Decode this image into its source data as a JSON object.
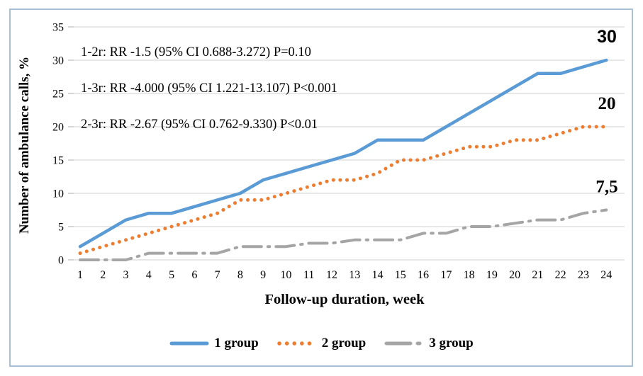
{
  "window": {
    "background": "#ffffff",
    "border_color": "#a9c0d6"
  },
  "chart_data": {
    "type": "line",
    "title": "",
    "xlabel": "Follow-up duration, week",
    "ylabel": "Number of ambulance calls, %",
    "x_ticks": [
      1,
      2,
      3,
      4,
      5,
      6,
      7,
      8,
      9,
      10,
      11,
      12,
      13,
      14,
      15,
      16,
      17,
      18,
      19,
      20,
      21,
      22,
      23,
      24
    ],
    "y_ticks": [
      0,
      5,
      10,
      15,
      20,
      25,
      30,
      35
    ],
    "ylim": [
      0,
      35
    ],
    "grid": true,
    "legend_position": "bottom",
    "gridline_color": "#d9d9d9",
    "tick_color": "#bfbfbf",
    "annotations": [
      "1-2r: RR -1.5 (95% CI 0.688-3.272) P=0.10",
      "1-3r: RR -4.000 (95% CI 1.221-13.107) P<0.001",
      "2-3r: RR -2.67 (95% CI 0.762-9.330) P<0.01"
    ],
    "series": [
      {
        "name": "1 group",
        "color": "#5B9BD5",
        "line_style": "solid",
        "end_label": "30",
        "values": [
          2,
          4,
          6,
          7,
          7,
          8,
          9,
          10,
          12,
          13,
          14,
          15,
          16,
          18,
          18,
          18,
          20,
          22,
          24,
          26,
          28,
          28,
          29,
          30
        ]
      },
      {
        "name": "2 group",
        "color": "#ED7D31",
        "line_style": "dotted",
        "end_label": "20",
        "values": [
          1,
          2,
          3,
          4,
          5,
          6,
          7,
          9,
          9,
          10,
          11,
          12,
          12,
          13,
          15,
          15,
          16,
          17,
          17,
          18,
          18,
          19,
          20,
          20
        ]
      },
      {
        "name": "3 group",
        "color": "#A5A5A5",
        "line_style": "dash-dot",
        "end_label": "7,5",
        "values": [
          0,
          0,
          0,
          1,
          1,
          1,
          1,
          2,
          2,
          2,
          2.5,
          2.5,
          3,
          3,
          3,
          4,
          4,
          5,
          5,
          5.5,
          6,
          6,
          7,
          7.5
        ]
      }
    ]
  }
}
